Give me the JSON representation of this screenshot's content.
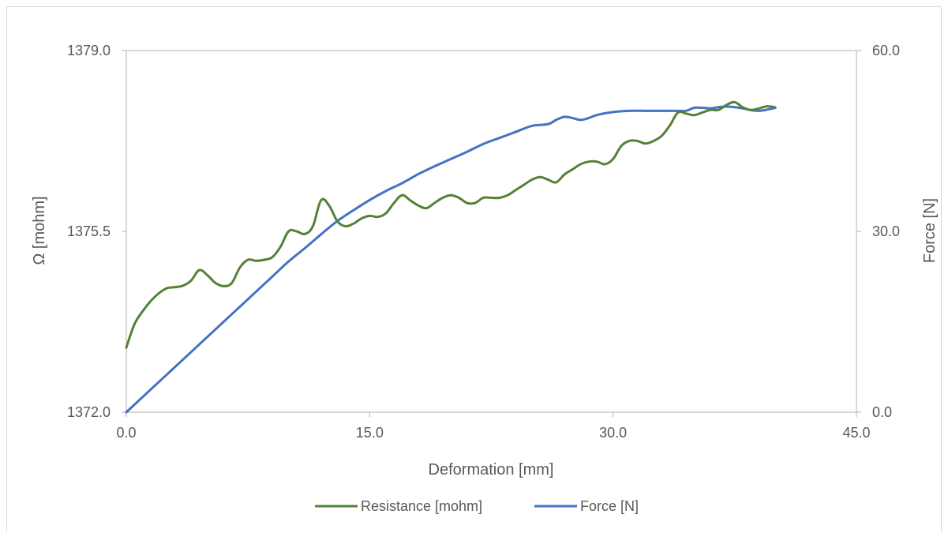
{
  "chart_data": {
    "type": "line",
    "xlabel": "Deformation [mm]",
    "ylabel_left": "Ω [mohm]",
    "ylabel_right": "Force [N]",
    "xlim": [
      0,
      45
    ],
    "ylim_left": [
      1372,
      1379
    ],
    "ylim_right": [
      0,
      60
    ],
    "xticks": [
      0,
      15,
      30,
      45
    ],
    "xtick_labels": [
      "0.0",
      "15.0",
      "30.0",
      "45.0"
    ],
    "yticks_left": [
      1372,
      1375.5,
      1379
    ],
    "ytick_labels_left": [
      "1372.0",
      "1375.5",
      "1379.0"
    ],
    "yticks_right": [
      0,
      30,
      60
    ],
    "ytick_labels_right": [
      "0.0",
      "30.0",
      "60.0"
    ],
    "grid": false,
    "legend_position": "bottom",
    "series": [
      {
        "name": "Resistance [mohm]",
        "axis": "left",
        "color": "#548235",
        "x": [
          0,
          0.5,
          1,
          1.5,
          2,
          2.5,
          3,
          3.5,
          4,
          4.5,
          5,
          5.5,
          6,
          6.5,
          7,
          7.5,
          8,
          8.5,
          9,
          9.5,
          10,
          10.5,
          11,
          11.5,
          12,
          12.5,
          13,
          13.5,
          14,
          14.5,
          15,
          15.5,
          16,
          16.5,
          17,
          17.5,
          18,
          18.5,
          19,
          19.5,
          20,
          20.5,
          21,
          21.5,
          22,
          22.5,
          23,
          23.5,
          24,
          24.5,
          25,
          25.5,
          26,
          26.5,
          27,
          27.5,
          28,
          28.5,
          29,
          29.5,
          30,
          30.5,
          31,
          31.5,
          32,
          32.5,
          33,
          33.5,
          34,
          34.5,
          35,
          35.5,
          36,
          36.5,
          37,
          37.5,
          38,
          38.5,
          39,
          39.5,
          40
        ],
        "values": [
          1373.25,
          1373.7,
          1373.95,
          1374.15,
          1374.3,
          1374.4,
          1374.42,
          1374.45,
          1374.55,
          1374.75,
          1374.65,
          1374.5,
          1374.44,
          1374.5,
          1374.8,
          1374.95,
          1374.93,
          1374.95,
          1375.0,
          1375.2,
          1375.5,
          1375.5,
          1375.45,
          1375.6,
          1376.1,
          1376.0,
          1375.7,
          1375.6,
          1375.65,
          1375.75,
          1375.8,
          1375.78,
          1375.85,
          1376.05,
          1376.2,
          1376.1,
          1376.0,
          1375.95,
          1376.05,
          1376.15,
          1376.2,
          1376.15,
          1376.05,
          1376.05,
          1376.15,
          1376.15,
          1376.15,
          1376.2,
          1376.3,
          1376.4,
          1376.5,
          1376.55,
          1376.5,
          1376.45,
          1376.6,
          1376.7,
          1376.8,
          1376.85,
          1376.85,
          1376.8,
          1376.9,
          1377.15,
          1377.25,
          1377.25,
          1377.2,
          1377.25,
          1377.35,
          1377.55,
          1377.8,
          1377.78,
          1377.75,
          1377.8,
          1377.85,
          1377.85,
          1377.95,
          1378.0,
          1377.9,
          1377.85,
          1377.88,
          1377.92,
          1377.9
        ],
        "note_x_units": "mm"
      },
      {
        "name": "Force [N]",
        "axis": "right",
        "color": "#4472c4",
        "x": [
          0,
          1,
          2,
          3,
          4,
          5,
          6,
          7,
          8,
          9,
          10,
          11,
          12,
          13,
          14,
          15,
          16,
          17,
          18,
          19,
          20,
          21,
          22,
          23,
          24,
          25,
          26,
          26.5,
          27,
          27.5,
          28,
          28.5,
          29,
          30,
          31,
          32,
          33,
          34,
          34.5,
          35,
          35.5,
          36,
          36.5,
          37,
          37.5,
          38,
          38.5,
          39,
          39.5,
          40
        ],
        "values": [
          0,
          2.5,
          5.0,
          7.5,
          10.0,
          12.5,
          15.0,
          17.5,
          20.0,
          22.5,
          25.0,
          27.2,
          29.5,
          31.7,
          33.5,
          35.2,
          36.7,
          38.0,
          39.5,
          40.8,
          42.0,
          43.2,
          44.5,
          45.5,
          46.5,
          47.5,
          47.8,
          48.5,
          49.0,
          48.8,
          48.5,
          48.8,
          49.3,
          49.8,
          50.0,
          50.0,
          50.0,
          50.0,
          50.0,
          50.5,
          50.5,
          50.4,
          50.6,
          50.7,
          50.6,
          50.4,
          50.1,
          50.0,
          50.2,
          50.5
        ]
      }
    ]
  }
}
